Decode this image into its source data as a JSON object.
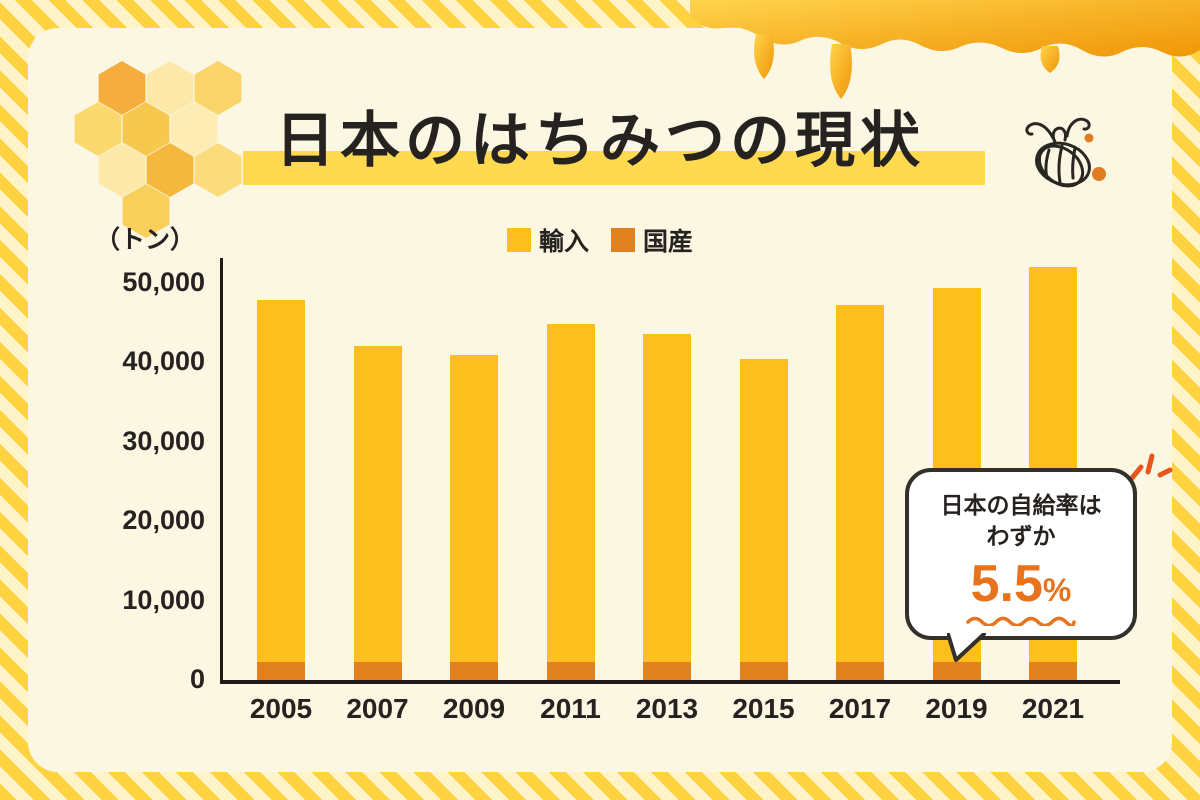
{
  "page": {
    "title": "日本のはちみつの現状",
    "unit_label": "（トン）"
  },
  "legend": {
    "items": [
      {
        "label": "輸入",
        "color": "#fcbf1e"
      },
      {
        "label": "国産",
        "color": "#e0801e"
      }
    ]
  },
  "callout": {
    "line1": "日本の自給率は",
    "line2": "わずか",
    "value": "5.5",
    "unit": "%"
  },
  "chart_data": {
    "type": "bar",
    "stacked": true,
    "title": "日本のはちみつの現状",
    "ylabel": "トン",
    "ylim": [
      0,
      50000
    ],
    "ytick_labels": [
      "50,000",
      "40,000",
      "30,000",
      "20,000",
      "10,000",
      "0"
    ],
    "categories": [
      "2005",
      "2007",
      "2009",
      "2011",
      "2013",
      "2015",
      "2017",
      "2019",
      "2021"
    ],
    "series": [
      {
        "name": "輸入",
        "color": "#fcbf1e",
        "values": [
          45600,
          39800,
          38600,
          42600,
          41300,
          38100,
          44900,
          47100,
          49800
        ]
      },
      {
        "name": "国産",
        "color": "#e0801e",
        "values": [
          2400,
          2400,
          2400,
          2400,
          2400,
          2400,
          2400,
          2400,
          2400
        ]
      }
    ],
    "legend_position": "top",
    "grid": false
  }
}
